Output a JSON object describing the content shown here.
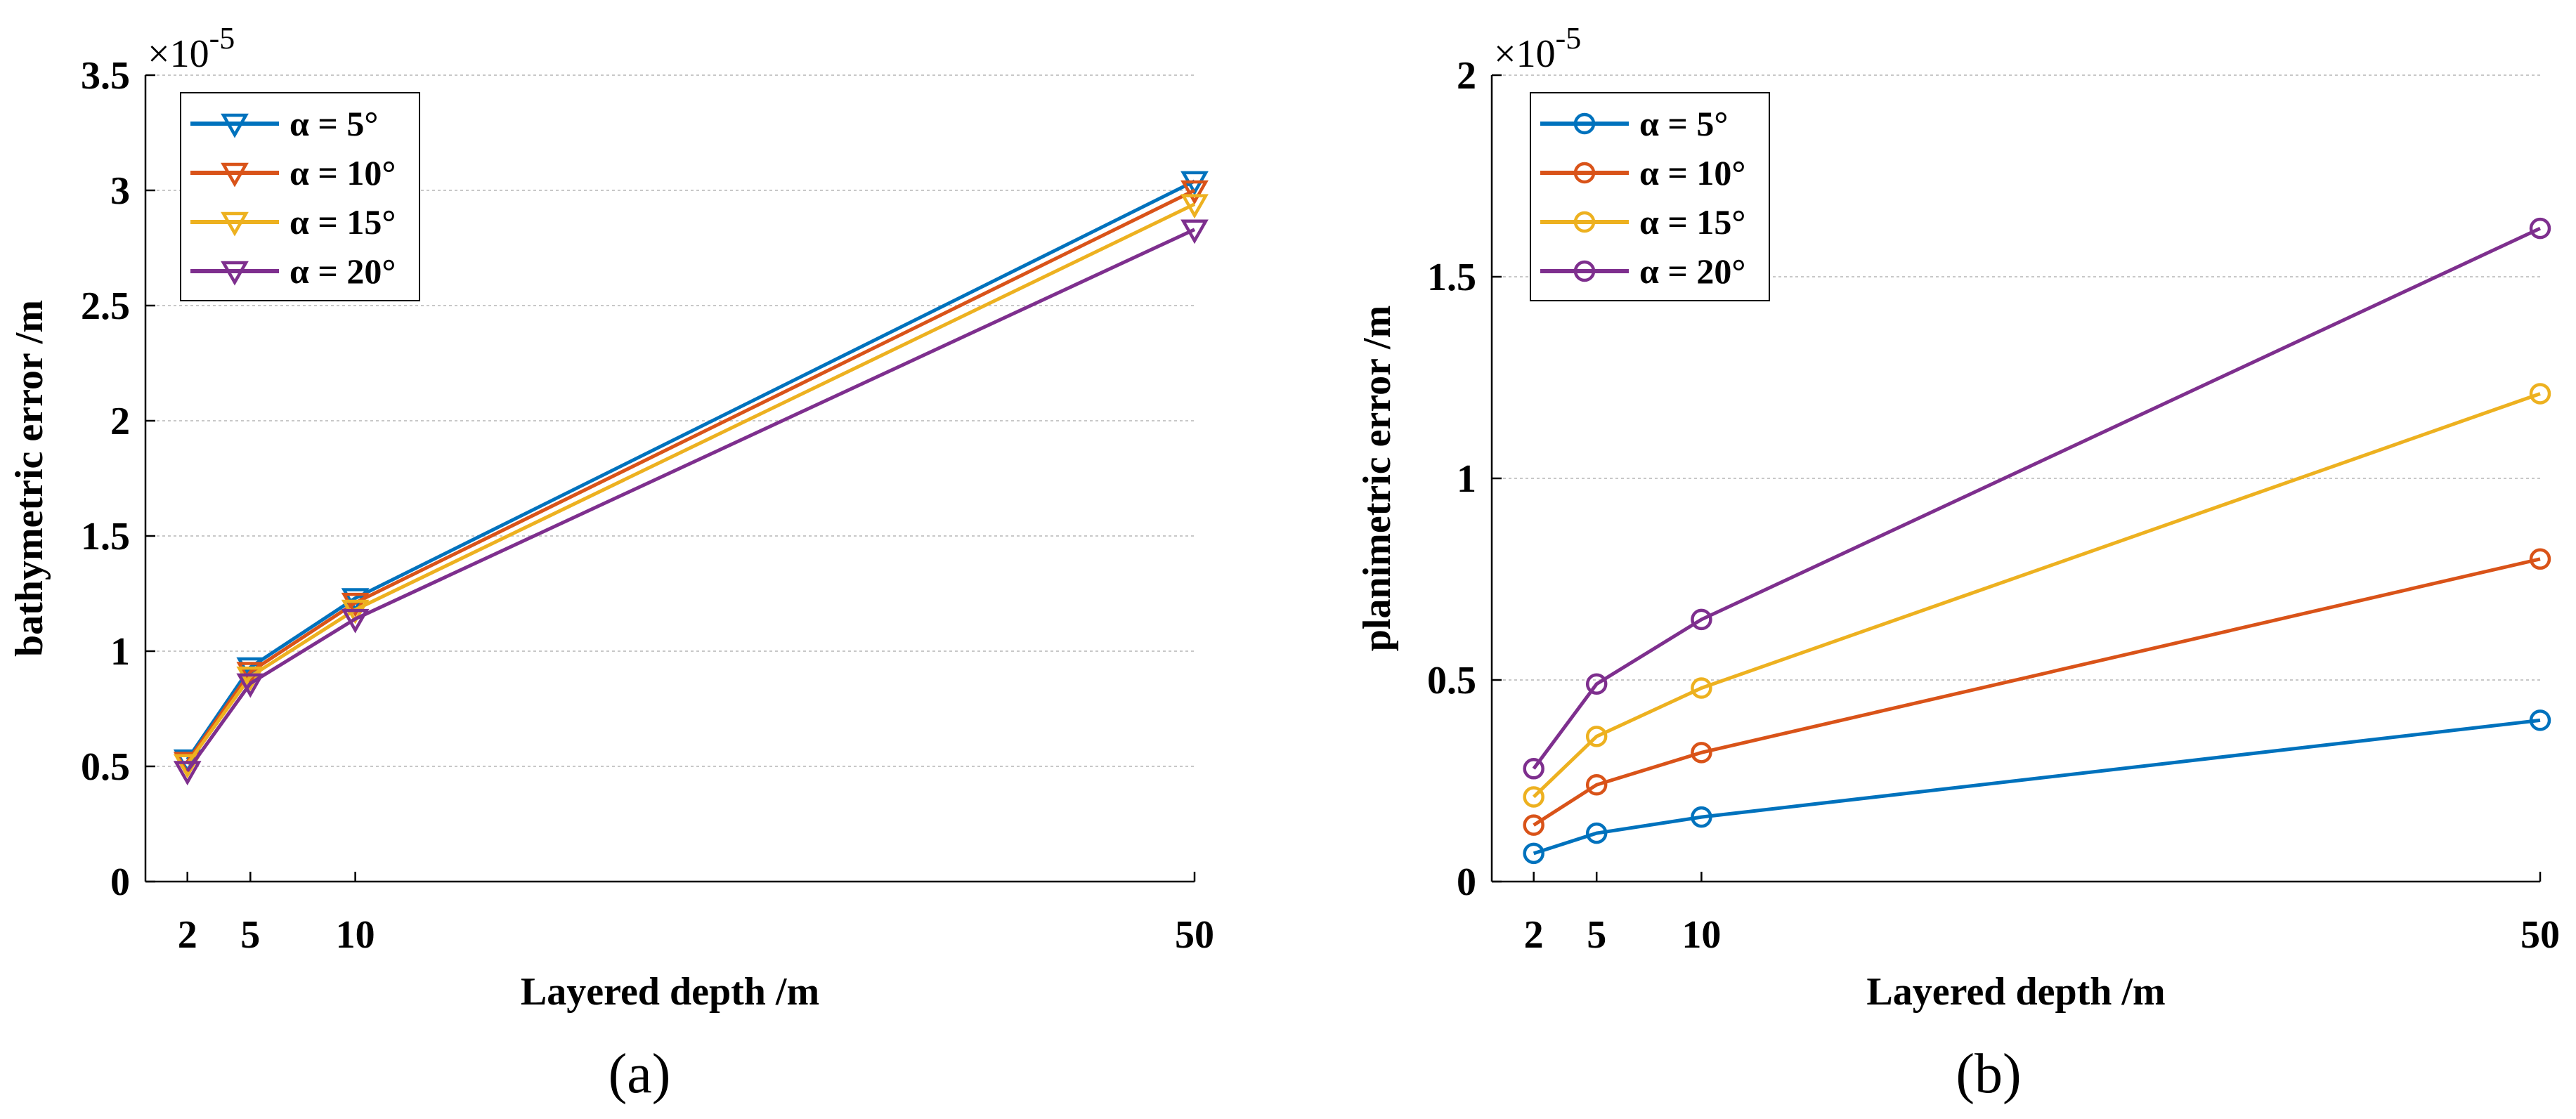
{
  "chart_data": [
    {
      "type": "line",
      "id": "a",
      "caption": "(a)",
      "exponent_label": "×10",
      "exponent_power": "-5",
      "xlabel": "Layered depth /m",
      "ylabel": "bathymetric error /m",
      "xlim": [
        0,
        50
      ],
      "ylim": [
        0,
        3.5
      ],
      "x_ticks": [
        2,
        5,
        10,
        50
      ],
      "x_tick_labels": [
        "2",
        "5",
        "10",
        "50"
      ],
      "y_ticks": [
        0,
        0.5,
        1,
        1.5,
        2,
        2.5,
        3,
        3.5
      ],
      "y_tick_labels": [
        "0",
        "0.5",
        "1",
        "1.5",
        "2",
        "2.5",
        "3",
        "3.5"
      ],
      "grid": true,
      "marker": "triangle-down",
      "legend_position": "top-left",
      "x": [
        2,
        5,
        10,
        50
      ],
      "series": [
        {
          "name": "α = 5°",
          "color": "#0072BD",
          "values": [
            0.53,
            0.93,
            1.23,
            3.04
          ]
        },
        {
          "name": "α = 10°",
          "color": "#D95319",
          "values": [
            0.52,
            0.91,
            1.21,
            3.0
          ]
        },
        {
          "name": "α = 15°",
          "color": "#EDB120",
          "values": [
            0.51,
            0.89,
            1.18,
            2.94
          ]
        },
        {
          "name": "α = 20°",
          "color": "#7E2F8E",
          "values": [
            0.48,
            0.86,
            1.14,
            2.83
          ]
        }
      ]
    },
    {
      "type": "line",
      "id": "b",
      "caption": "(b)",
      "exponent_label": "×10",
      "exponent_power": "-5",
      "xlabel": "Layered depth /m",
      "ylabel": "planimetric error /m",
      "xlim": [
        0,
        50
      ],
      "ylim": [
        0,
        2
      ],
      "x_ticks": [
        2,
        5,
        10,
        50
      ],
      "x_tick_labels": [
        "2",
        "5",
        "10",
        "50"
      ],
      "y_ticks": [
        0,
        0.5,
        1,
        1.5,
        2
      ],
      "y_tick_labels": [
        "0",
        "0.5",
        "1",
        "1.5",
        "2"
      ],
      "grid": true,
      "marker": "circle",
      "legend_position": "top-left",
      "x": [
        2,
        5,
        10,
        50
      ],
      "series": [
        {
          "name": "α = 5°",
          "color": "#0072BD",
          "values": [
            0.07,
            0.12,
            0.16,
            0.4
          ]
        },
        {
          "name": "α = 10°",
          "color": "#D95319",
          "values": [
            0.14,
            0.24,
            0.32,
            0.8
          ]
        },
        {
          "name": "α = 15°",
          "color": "#EDB120",
          "values": [
            0.21,
            0.36,
            0.48,
            1.21
          ]
        },
        {
          "name": "α = 20°",
          "color": "#7E2F8E",
          "values": [
            0.28,
            0.49,
            0.65,
            1.62
          ]
        }
      ]
    }
  ]
}
